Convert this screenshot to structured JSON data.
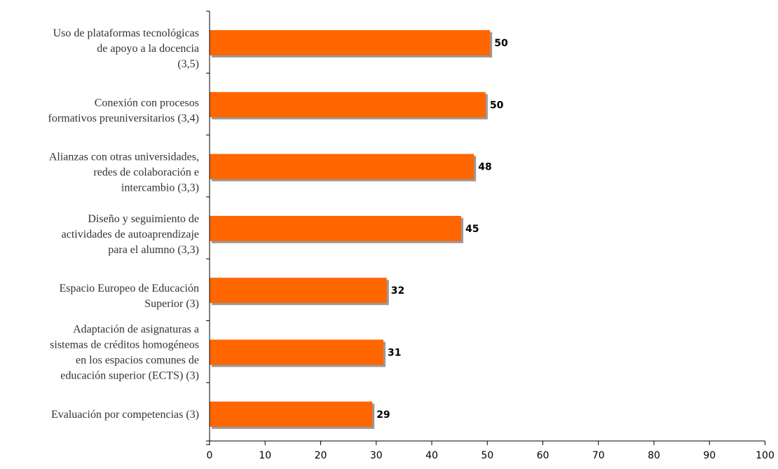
{
  "chart_data": {
    "type": "bar",
    "orientation": "horizontal",
    "categories": [
      [
        "Uso de plataformas tecnológicas",
        "de apoyo a la docencia",
        "(3,5)"
      ],
      [
        "Conexión con procesos",
        "formativos preuniversitarios (3,4)"
      ],
      [
        "Alianzas con otras universidades,",
        "redes de colaboración e",
        "intercambio (3,3)"
      ],
      [
        "Diseño y seguimiento de",
        "actividades de autoaprendizaje",
        "para el alumno (3,3)"
      ],
      [
        "Espacio Europeo de Educación",
        "Superior (3)"
      ],
      [
        "Adaptación de asignaturas a",
        "sistemas de créditos homogéneos",
        "en los espacios comunes de",
        "educación superior (ECTS) (3)"
      ],
      [
        "Evaluación por competencias (3)"
      ]
    ],
    "values": [
      50.5,
      49.7,
      47.6,
      45.3,
      31.9,
      31.3,
      29.3
    ],
    "value_labels": [
      "50",
      "50",
      "48",
      "45",
      "32",
      "31",
      "29"
    ],
    "x_ticks": [
      "0",
      "10",
      "20",
      "30",
      "40",
      "50",
      "60",
      "70",
      "80",
      "90",
      "100"
    ],
    "xlim": [
      0,
      100
    ],
    "title": "",
    "xlabel": "",
    "ylabel": "",
    "grid": false,
    "legend": "none",
    "colors": {
      "bar": "#FF6600",
      "bar_shadow": "#9A9A9A",
      "axis": "#000000"
    }
  }
}
